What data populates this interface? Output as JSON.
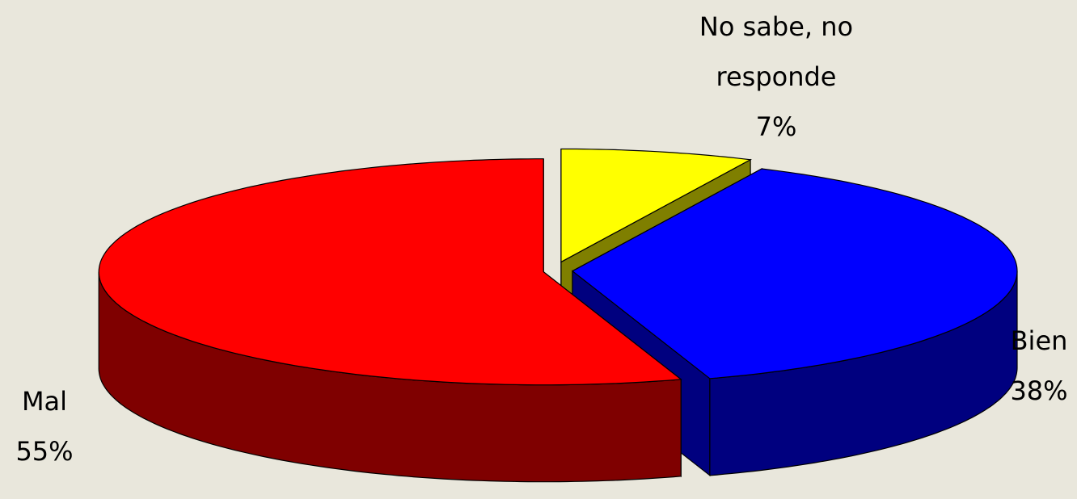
{
  "chart_data": {
    "type": "pie3d",
    "categories": [
      "No sabe, no responde",
      "Bien",
      "Mal"
    ],
    "values": [
      7,
      38,
      55
    ],
    "value_labels": [
      "7%",
      "38%",
      "55%"
    ],
    "colors": [
      "#ffff00",
      "#0000ff",
      "#ff0000"
    ]
  }
}
